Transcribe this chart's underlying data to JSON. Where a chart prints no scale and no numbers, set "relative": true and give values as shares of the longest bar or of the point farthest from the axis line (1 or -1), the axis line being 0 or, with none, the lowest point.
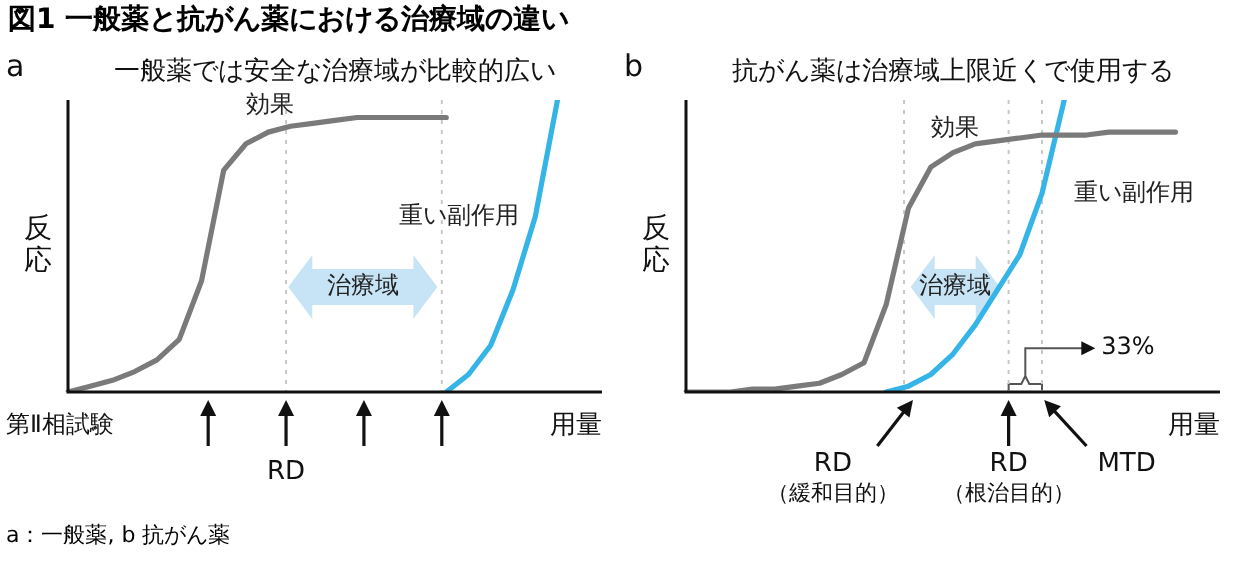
{
  "chart_data": [
    {
      "type": "line",
      "subtitle": "a",
      "title": "一般薬では安全な治療域が比較的広い",
      "xlabel": "用量",
      "ylabel": "反応",
      "relative": true,
      "tick_labels": false,
      "marker": "none",
      "line_style": "solid",
      "categories": [
        null,
        null,
        null,
        null,
        null,
        null,
        null,
        null,
        null,
        null,
        null,
        null,
        null,
        null,
        null,
        null,
        null,
        null,
        null,
        null,
        null,
        null,
        null,
        null,
        null
      ],
      "series": [
        {
          "name": "効果",
          "color": "#7a7a7a",
          "values": [
            0,
            0.02,
            0.04,
            0.07,
            0.11,
            0.18,
            0.38,
            0.76,
            0.85,
            0.89,
            0.91,
            0.92,
            0.93,
            0.94,
            0.94,
            0.94,
            0.94,
            0.94,
            null,
            null,
            null,
            null,
            null,
            null,
            null
          ]
        },
        {
          "name": "重い副作用",
          "color": "#35b4e8",
          "values": [
            null,
            null,
            null,
            null,
            null,
            null,
            null,
            null,
            null,
            null,
            null,
            null,
            null,
            null,
            null,
            null,
            null,
            0,
            0.06,
            0.16,
            0.35,
            0.6,
            1,
            null,
            null
          ]
        }
      ],
      "annotations": [
        "図1 一般薬と抗がん薬における治療域の違い",
        "a：一般薬, b 抗がん薬",
        "第Ⅱ相試験",
        "RD",
        "治療域"
      ]
    },
    {
      "type": "line",
      "subtitle": "b",
      "title": "抗がん薬は治療域上限近くで使用する",
      "xlabel": "用量",
      "ylabel": "反応",
      "relative": true,
      "tick_labels": false,
      "marker": "none",
      "line_style": "solid",
      "categories": [
        null,
        null,
        null,
        null,
        null,
        null,
        null,
        null,
        null,
        null,
        null,
        null,
        null,
        null,
        null,
        null,
        null,
        null,
        null,
        null,
        null,
        null,
        null,
        null,
        null
      ],
      "series": [
        {
          "name": "効果",
          "color": "#7a7a7a",
          "values": [
            0,
            0,
            0,
            0.01,
            0.01,
            0.02,
            0.03,
            0.06,
            0.1,
            0.3,
            0.63,
            0.77,
            0.82,
            0.85,
            0.86,
            0.87,
            0.88,
            0.88,
            0.88,
            0.89,
            0.89,
            0.89,
            0.89,
            null,
            null
          ]
        },
        {
          "name": "重い副作用",
          "color": "#35b4e8",
          "values": [
            null,
            null,
            null,
            null,
            null,
            null,
            null,
            null,
            null,
            0,
            0.02,
            0.06,
            0.13,
            0.23,
            0.35,
            0.47,
            0.68,
            1,
            null,
            null,
            null,
            null,
            null,
            null,
            null
          ]
        }
      ],
      "annotations": [
        "RD\n（緩和目的）",
        "RD\n（根治目的）",
        "MTD",
        "33%",
        "治療域"
      ]
    }
  ]
}
